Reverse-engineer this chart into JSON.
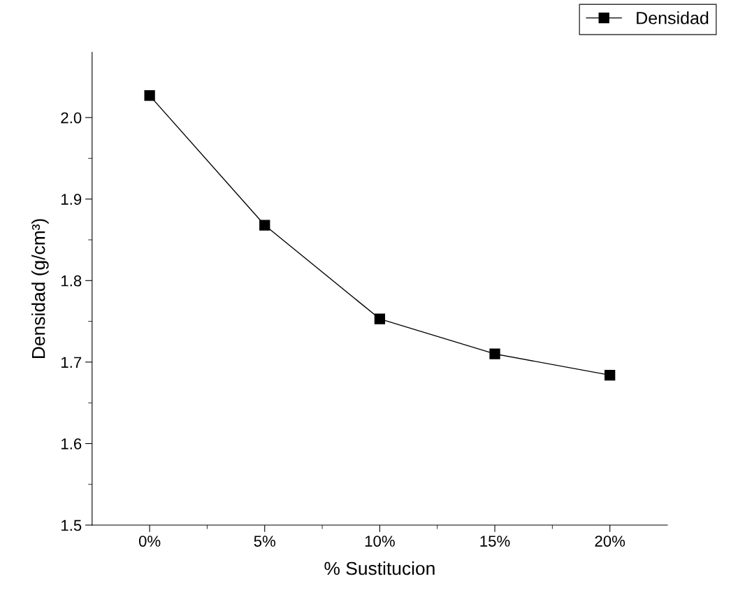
{
  "chart_data": {
    "type": "line",
    "xlabel": "% Sustitucion",
    "ylabel": "Densidad (g/cm³)",
    "categories": [
      "0%",
      "5%",
      "10%",
      "15%",
      "20%"
    ],
    "series": [
      {
        "name": "Densidad",
        "color": "#000000",
        "values": [
          2.027,
          1.868,
          1.753,
          1.71,
          1.684
        ]
      }
    ],
    "ylim": [
      1.5,
      2.08
    ],
    "yticks": [
      1.5,
      1.6,
      1.7,
      1.8,
      1.9,
      {
        "value": 2,
        "label": "2.0"
      }
    ],
    "marker": "square",
    "line_style": "solid",
    "legend": "top right",
    "grid": false
  }
}
